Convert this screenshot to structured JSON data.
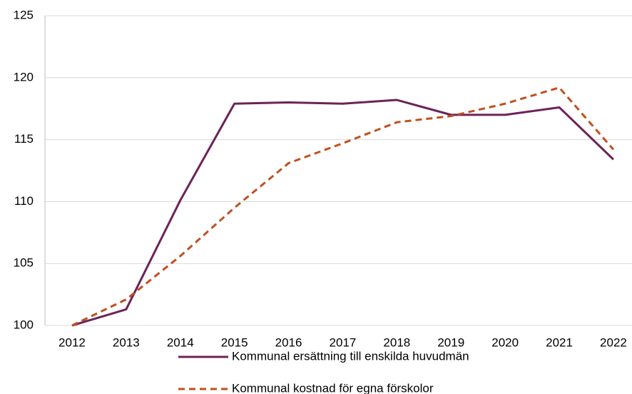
{
  "chart_data": {
    "type": "line",
    "categories": [
      "2012",
      "2013",
      "2014",
      "2015",
      "2016",
      "2017",
      "2018",
      "2019",
      "2020",
      "2021",
      "2022"
    ],
    "series": [
      {
        "name": "Kommunal ersättning till enskilda huvudmän",
        "color": "#6b2458",
        "dash": "solid",
        "values": [
          100,
          101.3,
          110.1,
          117.9,
          118.0,
          117.9,
          118.2,
          117.0,
          117.0,
          117.6,
          113.4
        ]
      },
      {
        "name": "Kommunal kostnad för egna förskolor",
        "color": "#c0501e",
        "dash": "dashed",
        "values": [
          100,
          102.1,
          105.6,
          109.5,
          113.1,
          114.7,
          116.4,
          116.9,
          117.9,
          119.2,
          114.2
        ]
      }
    ],
    "ylim": [
      100,
      125
    ],
    "yticks": [
      100,
      105,
      110,
      115,
      120,
      125
    ],
    "grid": true,
    "legend": "bottom"
  }
}
